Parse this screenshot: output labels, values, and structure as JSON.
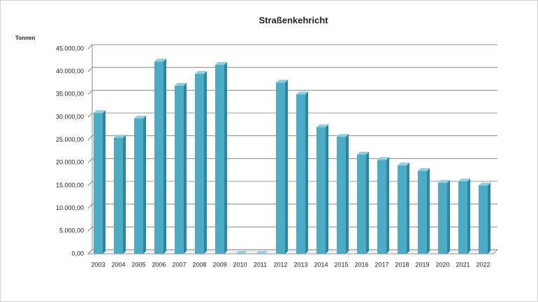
{
  "chart_data": {
    "type": "bar",
    "title": "Straßenkehricht",
    "y_label": "Tonnen",
    "categories": [
      "2003",
      "2004",
      "2005",
      "2006",
      "2007",
      "2008",
      "2009",
      "2010",
      "2011",
      "2012",
      "2013",
      "2014",
      "2015",
      "2016",
      "2017",
      "2018",
      "2019",
      "2020",
      "2021",
      "2022"
    ],
    "values": [
      30900,
      25500,
      29700,
      42200,
      36900,
      39500,
      41500,
      0,
      0,
      37600,
      35000,
      27800,
      25700,
      21800,
      20600,
      19400,
      18200,
      15600,
      15900,
      15000
    ],
    "color": "#4bacc6",
    "ylim": [
      0,
      45000
    ],
    "yticks": [
      {
        "value": 0,
        "label": "0,00"
      },
      {
        "value": 5000,
        "label": "5.000,00"
      },
      {
        "value": 10000,
        "label": "10.000,00"
      },
      {
        "value": 15000,
        "label": "15.000,00"
      },
      {
        "value": 20000,
        "label": "20.000,00"
      },
      {
        "value": 25000,
        "label": "25.000,00"
      },
      {
        "value": 30000,
        "label": "30.000,00"
      },
      {
        "value": 35000,
        "label": "35.000,00"
      },
      {
        "value": 40000,
        "label": "40.000,00"
      },
      {
        "value": 45000,
        "label": "45.000,00"
      }
    ],
    "grid": true
  }
}
